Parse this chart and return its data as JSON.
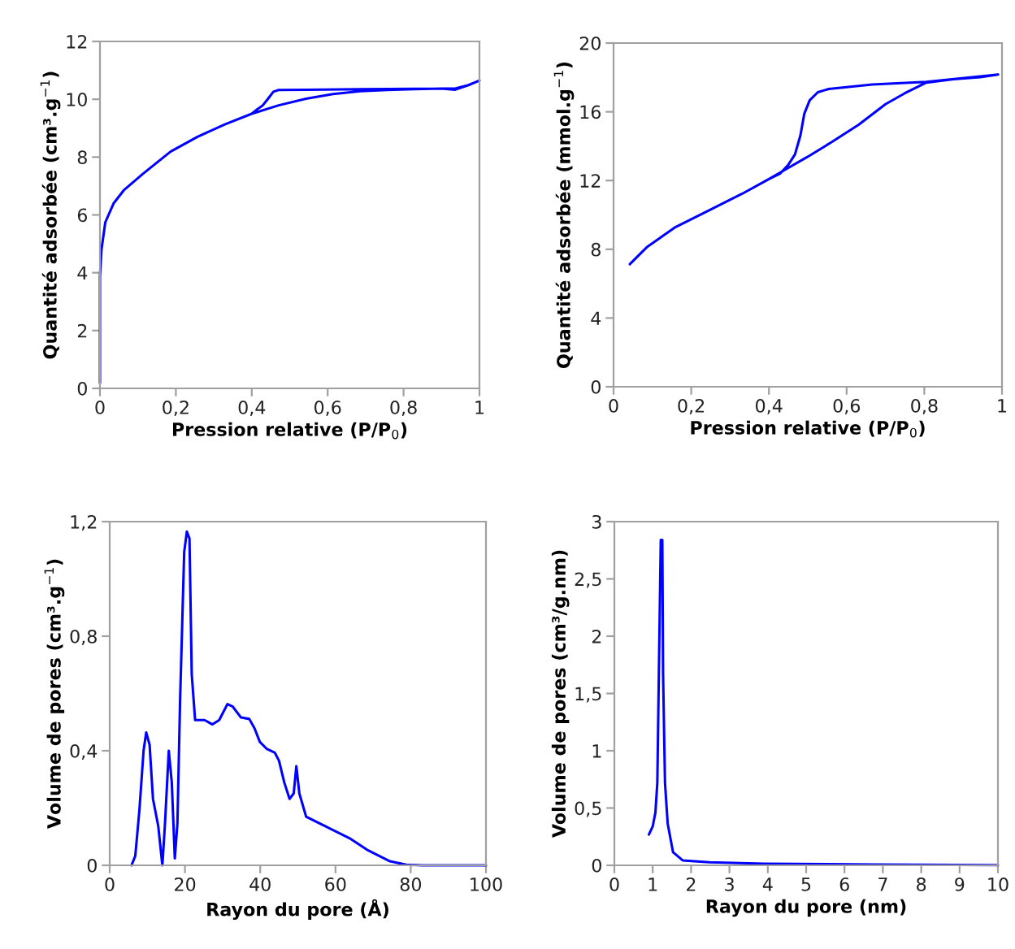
{
  "chart_data": [
    {
      "type": "line",
      "xlabel": "Pression relative (P/P$_{0}$)",
      "ylabel": "Quantité adsorbée (cm³.g$^{−1}$)",
      "xlim": [
        0,
        1
      ],
      "ylim": [
        0,
        12
      ],
      "xticks": [
        0,
        {
          "value": 0.2,
          "label": "0,2"
        },
        {
          "value": 0.4,
          "label": "0,4"
        },
        {
          "value": 0.6,
          "label": "0,6"
        },
        {
          "value": 0.8,
          "label": "0,8"
        },
        1
      ],
      "yticks": [
        0,
        2,
        4,
        6,
        8,
        10,
        12
      ],
      "series": [
        {
          "color": "#0000ff",
          "x": [
            0.0,
            0.0,
            0.004,
            0.014,
            0.036,
            0.064,
            0.114,
            0.186,
            0.257,
            0.329,
            0.4,
            0.471,
            0.543,
            0.614,
            0.686,
            0.757,
            0.829,
            0.9,
            0.936,
            0.971,
            1.0,
            0.971,
            0.936,
            0.9,
            0.686,
            0.543,
            0.471,
            0.457,
            0.443,
            0.429,
            0.414,
            0.4
          ],
          "values": [
            0.19,
            3.86,
            4.8,
            5.74,
            6.4,
            6.87,
            7.43,
            8.19,
            8.7,
            9.13,
            9.5,
            9.79,
            10.02,
            10.18,
            10.28,
            10.32,
            10.35,
            10.37,
            10.37,
            10.49,
            10.65,
            10.49,
            10.33,
            10.37,
            10.35,
            10.33,
            10.32,
            10.26,
            10.02,
            9.79,
            9.65,
            9.5
          ]
        }
      ]
    },
    {
      "type": "line",
      "xlabel": "Pression relative (P/P$_{0}$)",
      "ylabel": "Quantité adsorbée (mmol.g$^{−1}$)",
      "xlim": [
        0,
        1
      ],
      "ylim": [
        0,
        20
      ],
      "xticks": [
        0,
        {
          "value": 0.2,
          "label": "0,2"
        },
        {
          "value": 0.4,
          "label": "0,4"
        },
        {
          "value": 0.6,
          "label": "0,6"
        },
        {
          "value": 0.8,
          "label": "0,8"
        },
        1
      ],
      "yticks": [
        0,
        4,
        8,
        12,
        16,
        20
      ],
      "series": [
        {
          "color": "#0000ff",
          "x": [
            0.042,
            0.087,
            0.157,
            0.247,
            0.331,
            0.401,
            0.443,
            0.498,
            0.561,
            0.631,
            0.7,
            0.749,
            0.805,
            0.875,
            0.944,
            0.99,
            0.805,
            0.666,
            0.554,
            0.526,
            0.505,
            0.491,
            0.481,
            0.467,
            0.449,
            0.429,
            0.401
          ],
          "values": [
            7.13,
            8.15,
            9.26,
            10.28,
            11.23,
            12.1,
            12.65,
            13.36,
            14.23,
            15.25,
            16.44,
            17.07,
            17.7,
            17.9,
            18.01,
            18.17,
            17.74,
            17.59,
            17.33,
            17.14,
            16.67,
            15.88,
            14.62,
            13.52,
            12.89,
            12.41,
            12.1
          ]
        }
      ]
    },
    {
      "type": "line",
      "xlabel": "Rayon du pore (Å)",
      "ylabel": "Volume de pores (cm³.g$^{−1}$)",
      "xlim": [
        0,
        100
      ],
      "ylim": [
        0,
        1.2
      ],
      "xticks": [
        0,
        20,
        40,
        60,
        80,
        100
      ],
      "yticks": [
        0,
        {
          "value": 0.4,
          "label": "0,4"
        },
        {
          "value": 0.8,
          "label": "0,8"
        },
        {
          "value": 1.2,
          "label": "1,2"
        }
      ],
      "series": [
        {
          "color": "#0000ff",
          "x": [
            5.8,
            6.8,
            7.9,
            9.0,
            9.7,
            10.6,
            11.5,
            12.9,
            14.0,
            14.7,
            15.7,
            16.5,
            17.3,
            18.0,
            18.7,
            19.8,
            20.5,
            21.2,
            21.8,
            22.7,
            25.2,
            27.3,
            29.1,
            31.3,
            32.7,
            34.9,
            37.1,
            38.5,
            39.9,
            41.7,
            43.9,
            45.0,
            46.4,
            47.8,
            48.9,
            49.6,
            50.4,
            52.2,
            57.2,
            63.7,
            68.7,
            74.5,
            78.8,
            83.1,
            100
          ],
          "values": [
            0,
            0.033,
            0.194,
            0.4,
            0.464,
            0.421,
            0.232,
            0.137,
            0,
            0.147,
            0.4,
            0.289,
            0.024,
            0.147,
            0.573,
            1.094,
            1.165,
            1.141,
            0.668,
            0.507,
            0.507,
            0.492,
            0.507,
            0.563,
            0.554,
            0.516,
            0.511,
            0.478,
            0.431,
            0.407,
            0.393,
            0.365,
            0.289,
            0.232,
            0.251,
            0.346,
            0.251,
            0.17,
            0.137,
            0.095,
            0.052,
            0.014,
            0.002,
            0,
            0
          ]
        }
      ]
    },
    {
      "type": "line",
      "xlabel": "Rayon du pore (nm)",
      "ylabel": "Volume de pores (cm³/g.nm)",
      "xlim": [
        0,
        10
      ],
      "ylim": [
        0,
        3
      ],
      "xticks": [
        0,
        1,
        2,
        3,
        4,
        5,
        6,
        7,
        8,
        9,
        10
      ],
      "yticks": [
        0,
        {
          "value": 0.5,
          "label": "0,5"
        },
        1,
        {
          "value": 1.5,
          "label": "1,5"
        },
        2,
        {
          "value": 2.5,
          "label": "2,5"
        },
        3
      ],
      "series": [
        {
          "color": "#0000ff",
          "x": [
            0.9,
            1.0,
            1.07,
            1.12,
            1.16,
            1.21,
            1.25,
            1.27,
            1.32,
            1.39,
            1.53,
            1.78,
            2.48,
            3.9,
            6.72,
            10
          ],
          "values": [
            0.269,
            0.34,
            0.46,
            0.721,
            1.674,
            2.84,
            2.84,
            1.674,
            0.721,
            0.364,
            0.114,
            0.043,
            0.026,
            0.014,
            0.007,
            0.002
          ]
        }
      ]
    }
  ]
}
